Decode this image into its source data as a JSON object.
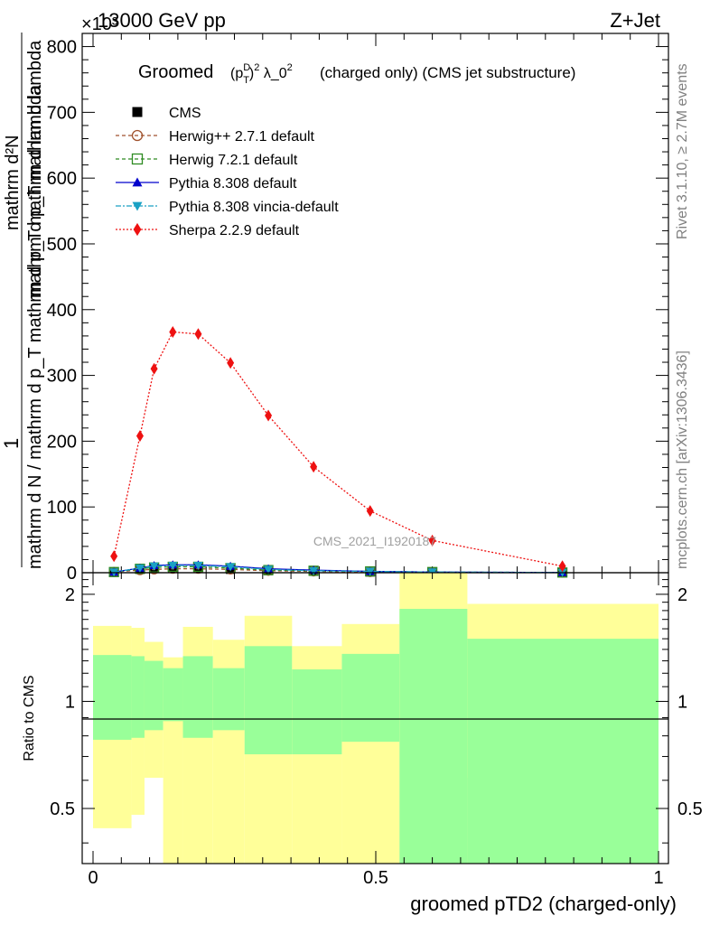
{
  "header": {
    "left": "13000 GeV pp",
    "right": "Z+Jet",
    "exponent": "×10³"
  },
  "side_labels": {
    "rivet": "Rivet 3.1.10, ≥ 2.7M events",
    "mcplots": "mcplots.cern.ch [arXiv:1306.3436]"
  },
  "chart_data": [
    {
      "type": "line",
      "title": "Groomed (p_T^D)^2 λ_0^2  (charged only) (CMS jet substructure)",
      "title_parts": {
        "main": "Groomed",
        "tail": "(charged only) (CMS jet substructure)"
      },
      "ylabel_top": "1",
      "ylabel_frac_num": "mathrm d²N",
      "ylabel_frac_den": "mathrm d p_T mathrm d lambda",
      "ylabel_full": "mathrm d N / mathrm d p_T mathrm d p_T mathrm d lambda",
      "ylabel_parts": {
        "num_line": "mathrm d²N",
        "den_line": "mathrm d p_T mathrm d lambda",
        "main": "mathrm d N / mathrm d p_T mathrm d p_T mathrm d lambda",
        "one": "1"
      },
      "watermark": "CMS_2021_I1920187",
      "ylim": [
        0,
        820
      ],
      "y_scale_note": "×10³",
      "xlim": [
        0,
        1
      ],
      "yticks": [
        0,
        100,
        200,
        300,
        400,
        500,
        600,
        700,
        800
      ],
      "ytick_labels": [
        "0",
        "100",
        "200",
        "300",
        "400",
        "500",
        "600",
        "700",
        "800"
      ],
      "legend_position": "top-left",
      "series": [
        {
          "name": "CMS",
          "color": "#000000",
          "marker": "square-filled",
          "x": [
            0.037,
            0.083,
            0.108,
            0.141,
            0.186,
            0.243,
            0.31,
            0.39,
            0.49,
            0.6,
            0.83
          ],
          "y": [
            1,
            5,
            7,
            7,
            7,
            5,
            3,
            2,
            1,
            0.5,
            0.2
          ]
        },
        {
          "name": "Herwig++ 2.7.1 default",
          "color": "#a0522d",
          "marker": "circle-open",
          "dash": "4,3",
          "x": [
            0.037,
            0.083,
            0.108,
            0.141,
            0.186,
            0.243,
            0.31,
            0.39,
            0.49,
            0.6,
            0.83
          ],
          "y": [
            1,
            4,
            5,
            6,
            6,
            5,
            3,
            2,
            1,
            0.5,
            0.2
          ]
        },
        {
          "name": "Herwig 7.2.1 default",
          "color": "#2e8b22",
          "marker": "square-open",
          "dash": "4,3",
          "x": [
            0.037,
            0.083,
            0.108,
            0.141,
            0.186,
            0.243,
            0.31,
            0.39,
            0.49,
            0.6,
            0.83
          ],
          "y": [
            1,
            6,
            8,
            9,
            9,
            7,
            4,
            3,
            2,
            1,
            0.3
          ]
        },
        {
          "name": "Pythia 8.308 default",
          "color": "#0000cc",
          "marker": "triangle-up",
          "dash": "",
          "x": [
            0.037,
            0.083,
            0.108,
            0.141,
            0.186,
            0.243,
            0.31,
            0.39,
            0.49,
            0.6,
            0.83
          ],
          "y": [
            1,
            7,
            11,
            12,
            12,
            10,
            6,
            4,
            2,
            1,
            0.3
          ]
        },
        {
          "name": "Pythia 8.308 vincia-default",
          "color": "#1aa1c4",
          "marker": "triangle-down",
          "dash": "6,2,2,2",
          "x": [
            0.037,
            0.083,
            0.108,
            0.141,
            0.186,
            0.243,
            0.31,
            0.39,
            0.49,
            0.6,
            0.83
          ],
          "y": [
            1,
            7,
            10,
            11,
            11,
            9,
            5,
            3,
            2,
            1,
            0.3
          ]
        },
        {
          "name": "Sherpa 2.2.9 default",
          "color": "#ee1111",
          "marker": "diamond",
          "dash": "2,2",
          "x": [
            0.037,
            0.083,
            0.108,
            0.141,
            0.186,
            0.243,
            0.31,
            0.39,
            0.49,
            0.6,
            0.83
          ],
          "y": [
            25,
            208,
            310,
            366,
            363,
            319,
            239,
            161,
            94,
            49,
            10
          ]
        }
      ]
    },
    {
      "type": "area",
      "ylabel": "Ratio to CMS",
      "xlabel": "groomed pTD2 (charged-only)",
      "xlim": [
        0,
        1
      ],
      "ylim": [
        0.35,
        2.3
      ],
      "xticks": [
        0,
        0.5,
        1
      ],
      "xtick_labels": [
        "0",
        "0.5",
        "1"
      ],
      "yticks": [
        0.5,
        1,
        2
      ],
      "ytick_labels": [
        "0.5",
        "1",
        "2"
      ],
      "band_colors": {
        "inner": "#99ff99",
        "outer": "#ffff99"
      },
      "bins": [
        {
          "x0": 0.0,
          "x1": 0.068,
          "g_lo": 0.78,
          "g_hi": 1.35,
          "y_lo": 0.44,
          "y_hi": 1.63
        },
        {
          "x0": 0.068,
          "x1": 0.091,
          "g_lo": 0.79,
          "g_hi": 1.34,
          "y_lo": 0.48,
          "y_hi": 1.61
        },
        {
          "x0": 0.091,
          "x1": 0.124,
          "g_lo": 0.83,
          "g_hi": 1.3,
          "y_lo": 0.61,
          "y_hi": 1.47
        },
        {
          "x0": 0.124,
          "x1": 0.159,
          "g_lo": 0.88,
          "g_hi": 1.24,
          "y_lo": 0.35,
          "y_hi": 1.33
        },
        {
          "x0": 0.159,
          "x1": 0.212,
          "g_lo": 0.79,
          "g_hi": 1.34,
          "y_lo": 0.35,
          "y_hi": 1.62
        },
        {
          "x0": 0.212,
          "x1": 0.268,
          "g_lo": 0.83,
          "g_hi": 1.24,
          "y_lo": 0.35,
          "y_hi": 1.49
        },
        {
          "x0": 0.268,
          "x1": 0.352,
          "g_lo": 0.71,
          "g_hi": 1.43,
          "y_lo": 0.35,
          "y_hi": 1.74
        },
        {
          "x0": 0.352,
          "x1": 0.44,
          "g_lo": 0.71,
          "g_hi": 1.23,
          "y_lo": 0.35,
          "y_hi": 1.43
        },
        {
          "x0": 0.44,
          "x1": 0.542,
          "g_lo": 0.77,
          "g_hi": 1.36,
          "y_lo": 0.35,
          "y_hi": 1.65
        },
        {
          "x0": 0.542,
          "x1": 0.662,
          "g_lo": 0.35,
          "g_hi": 1.82,
          "y_lo": 0.35,
          "y_hi": 2.3
        },
        {
          "x0": 0.662,
          "x1": 1.0,
          "g_lo": 0.35,
          "g_hi": 1.5,
          "y_lo": 0.61,
          "y_hi": 1.88
        }
      ]
    }
  ]
}
